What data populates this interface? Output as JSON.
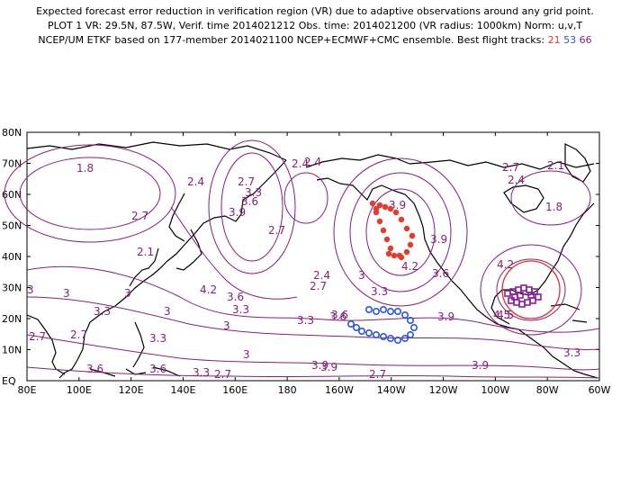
{
  "header": {
    "line1": "Expected forecast error reduction in verification region (VR) due to adaptive observations around any grid point.",
    "line2": "PLOT 1 VR: 29.5N, 87.5W, Verif. time 2014021212 Obs. time: 2014021200 (VR radius: 1000km) Norm: u,v,T",
    "line3_prefix": "NCEP/UM ETKF based on 177-member 2014021100 NCEP+ECMWF+CMC ensemble. Best flight tracks:",
    "track_a": "21",
    "track_b": "53",
    "track_c": "66"
  },
  "colors": {
    "contour": "#8a1e7a",
    "coast": "#000000",
    "track_a": "#e8392a",
    "track_b": "#2b57d6",
    "track_c": "#8a1e9a",
    "vr_circle": "#e03030"
  },
  "axes": {
    "lat_labels": [
      "80N",
      "70N",
      "60N",
      "50N",
      "40N",
      "30N",
      "20N",
      "10N",
      "EQ"
    ],
    "lon_labels": [
      "80E",
      "100E",
      "120E",
      "140E",
      "160E",
      "180",
      "160W",
      "140W",
      "120W",
      "100W",
      "80W",
      "60W"
    ]
  },
  "contour_labels": [
    {
      "v": "1.8"
    },
    {
      "v": "2.4"
    },
    {
      "v": "2.4"
    },
    {
      "v": "2.7"
    },
    {
      "v": "3.3"
    },
    {
      "v": "3.6"
    },
    {
      "v": "3.9"
    },
    {
      "v": "2.7"
    },
    {
      "v": "2.1"
    },
    {
      "v": "1.8"
    },
    {
      "v": "2.1"
    },
    {
      "v": "2.4"
    },
    {
      "v": "2.7"
    },
    {
      "v": "3"
    },
    {
      "v": "4.2"
    },
    {
      "v": "3.6"
    },
    {
      "v": "3.3"
    },
    {
      "v": "3"
    },
    {
      "v": "2.4"
    },
    {
      "v": "2.7"
    },
    {
      "v": "3"
    },
    {
      "v": "3.3"
    },
    {
      "v": "3.6"
    },
    {
      "v": "3.3"
    },
    {
      "v": "3"
    },
    {
      "v": "2.7"
    },
    {
      "v": "2.7"
    },
    {
      "v": "3.3"
    },
    {
      "v": "3"
    },
    {
      "v": "3.6"
    },
    {
      "v": "3.3"
    },
    {
      "v": "3.3"
    },
    {
      "v": "3.6"
    },
    {
      "v": "3.9"
    },
    {
      "v": "3"
    },
    {
      "v": "2.7"
    },
    {
      "v": "3.9"
    },
    {
      "v": "4.2"
    },
    {
      "v": "3.6"
    },
    {
      "v": "3.9"
    },
    {
      "v": "4.5"
    },
    {
      "v": "4.2"
    },
    {
      "v": "3.9"
    },
    {
      "v": "3.3"
    },
    {
      "v": "3.9"
    },
    {
      "v": "2.7"
    },
    {
      "v": "2.4"
    },
    {
      "v": "4.5"
    },
    {
      "v": "3.9"
    },
    {
      "v": "2.7"
    },
    {
      "v": "3"
    },
    {
      "v": "3.6"
    }
  ]
}
